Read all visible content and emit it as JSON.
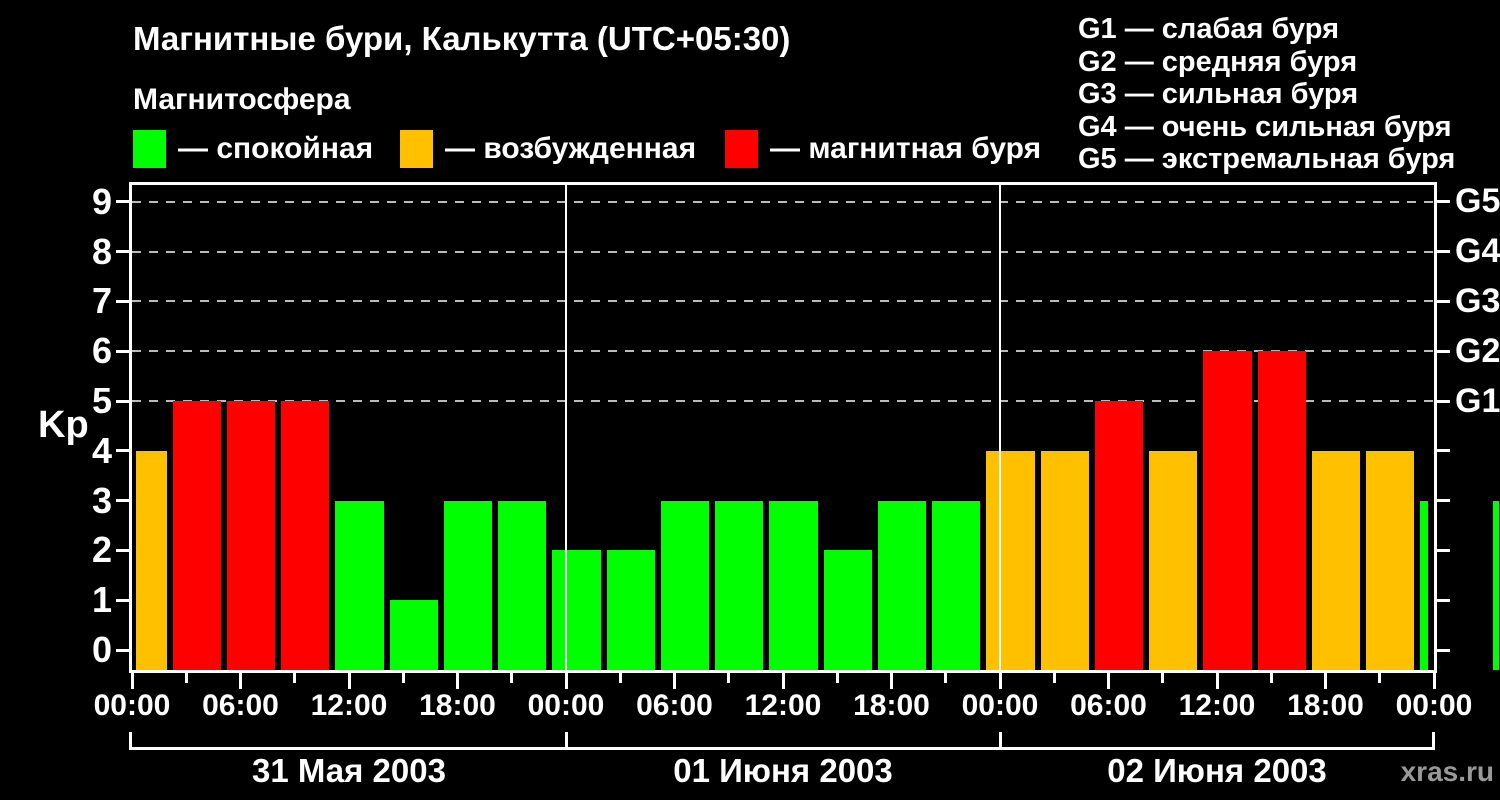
{
  "watermark": "xras.ru",
  "colors": {
    "calm": "#00FF00",
    "excited": "#FFC000",
    "storm": "#FF0000",
    "axis": "#FFFFFF",
    "grid": "#BBBBBB",
    "watermark": "#999999",
    "background": "#000000"
  },
  "legend": {
    "title": "Магнитосфера",
    "items": [
      {
        "status": "calm",
        "label": "— спокойная"
      },
      {
        "status": "excited",
        "label": "— возбужденная"
      },
      {
        "status": "storm",
        "label": "— магнитная буря"
      }
    ]
  },
  "g_legend": [
    "G1 — слабая буря",
    "G2 — средняя буря",
    "G3 — сильная буря",
    "G4 — очень сильная буря",
    "G5 — экстремальная буря"
  ],
  "chart_data": {
    "type": "bar",
    "title": "Магнитные бури, Калькутта (UTC+05:30)",
    "ylabel": "Kp",
    "y_ticks": [
      "0",
      "1",
      "2",
      "3",
      "4",
      "5",
      "6",
      "7",
      "8",
      "9"
    ],
    "ylim": [
      -0.4,
      9.35
    ],
    "x_axis_hours": [
      0,
      72
    ],
    "x_minor_step_hours": 3,
    "x_label_step_hours": 6,
    "x_tick_labels": [
      "00:00",
      "06:00",
      "12:00",
      "18:00",
      "00:00",
      "06:00",
      "12:00",
      "18:00",
      "00:00",
      "06:00",
      "12:00",
      "18:00",
      "00:00"
    ],
    "grid_levels": [
      5,
      6,
      7,
      8,
      9
    ],
    "right_axis": [
      {
        "kp": 5,
        "label": "G1"
      },
      {
        "kp": 6,
        "label": "G2"
      },
      {
        "kp": 7,
        "label": "G3"
      },
      {
        "kp": 8,
        "label": "G4"
      },
      {
        "kp": 9,
        "label": "G5"
      }
    ],
    "days": [
      {
        "label": "31 Мая 2003",
        "start_hour": 0,
        "end_hour": 24
      },
      {
        "label": "01 Июня 2003",
        "start_hour": 24,
        "end_hour": 48
      },
      {
        "label": "02 Июня 2003",
        "start_hour": 48,
        "end_hour": 72
      }
    ],
    "bars": [
      {
        "start_hour": -1,
        "kp": 4,
        "status": "excited"
      },
      {
        "start_hour": 2,
        "kp": 5,
        "status": "storm"
      },
      {
        "start_hour": 5,
        "kp": 5,
        "status": "storm"
      },
      {
        "start_hour": 8,
        "kp": 5,
        "status": "storm"
      },
      {
        "start_hour": 11,
        "kp": 3,
        "status": "calm"
      },
      {
        "start_hour": 14,
        "kp": 1,
        "status": "calm"
      },
      {
        "start_hour": 17,
        "kp": 3,
        "status": "calm"
      },
      {
        "start_hour": 20,
        "kp": 3,
        "status": "calm"
      },
      {
        "start_hour": 23,
        "kp": 2,
        "status": "calm"
      },
      {
        "start_hour": 26,
        "kp": 2,
        "status": "calm"
      },
      {
        "start_hour": 29,
        "kp": 3,
        "status": "calm"
      },
      {
        "start_hour": 32,
        "kp": 3,
        "status": "calm"
      },
      {
        "start_hour": 35,
        "kp": 3,
        "status": "calm"
      },
      {
        "start_hour": 38,
        "kp": 2,
        "status": "calm"
      },
      {
        "start_hour": 41,
        "kp": 3,
        "status": "calm"
      },
      {
        "start_hour": 44,
        "kp": 3,
        "status": "calm"
      },
      {
        "start_hour": 47,
        "kp": 4,
        "status": "excited"
      },
      {
        "start_hour": 50,
        "kp": 4,
        "status": "excited"
      },
      {
        "start_hour": 53,
        "kp": 5,
        "status": "storm"
      },
      {
        "start_hour": 56,
        "kp": 4,
        "status": "excited"
      },
      {
        "start_hour": 59,
        "kp": 6,
        "status": "storm"
      },
      {
        "start_hour": 62,
        "kp": 6,
        "status": "storm"
      },
      {
        "start_hour": 65,
        "kp": 4,
        "status": "excited"
      },
      {
        "start_hour": 68,
        "kp": 4,
        "status": "excited"
      },
      {
        "start_hour": 71,
        "kp": 3,
        "status": "calm"
      },
      {
        "start_hour": 75,
        "kp": 3,
        "status": "calm"
      }
    ]
  }
}
